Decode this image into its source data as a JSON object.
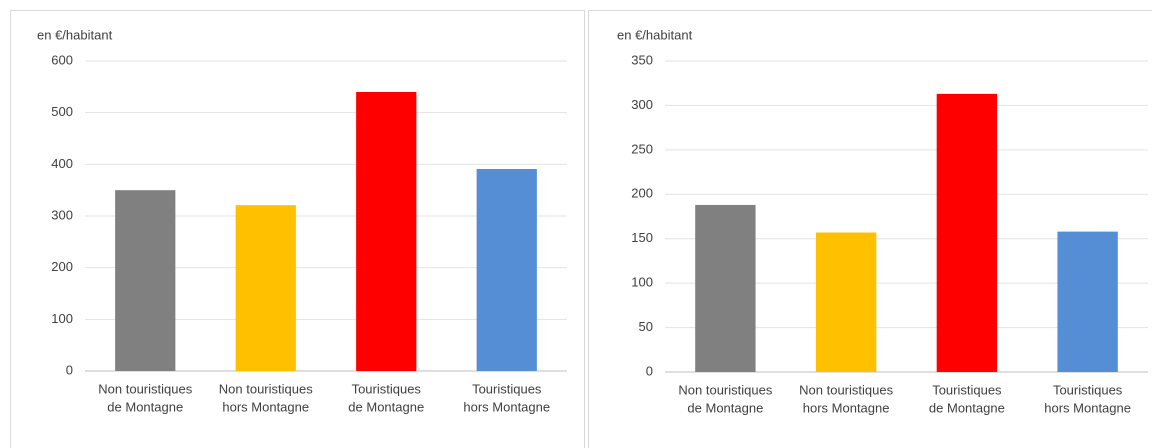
{
  "chart_data": [
    {
      "type": "bar",
      "y_label": "en €/habitant",
      "categories": [
        [
          "Non touristiques",
          "de Montagne"
        ],
        [
          "Non touristiques",
          "hors Montagne"
        ],
        [
          "Touristiques",
          "de Montagne"
        ],
        [
          "Touristiques",
          "hors Montagne"
        ]
      ],
      "values": [
        350,
        321,
        540,
        391
      ],
      "colors": [
        "#808080",
        "#ffc000",
        "#ff0000",
        "#558ed5"
      ],
      "ylim": [
        0,
        600
      ],
      "yticks": [
        0,
        100,
        200,
        300,
        400,
        500,
        600
      ],
      "grid": true
    },
    {
      "type": "bar",
      "y_label": "en €/habitant",
      "categories": [
        [
          "Non touristiques",
          "de Montagne"
        ],
        [
          "Non touristiques",
          "hors Montagne"
        ],
        [
          "Touristiques",
          "de Montagne"
        ],
        [
          "Touristiques",
          "hors Montagne"
        ]
      ],
      "values": [
        188,
        157,
        313,
        158
      ],
      "colors": [
        "#808080",
        "#ffc000",
        "#ff0000",
        "#558ed5"
      ],
      "ylim": [
        0,
        350
      ],
      "yticks": [
        0,
        50,
        100,
        150,
        200,
        250,
        300,
        350
      ],
      "grid": true
    }
  ]
}
